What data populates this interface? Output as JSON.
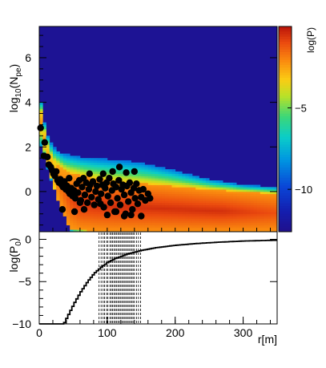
{
  "chart_data": [
    {
      "type": "heatmap",
      "ylabel": "log",
      "ylabel_sub": "10",
      "ylabel_tail": "(N",
      "ylabel_sub2": "pe",
      "ylabel_close": ")",
      "xlim": [
        0,
        350
      ],
      "ylim": [
        -1.8,
        7.4
      ],
      "yticks": [
        {
          "v": 0,
          "label": "0"
        },
        {
          "v": 2,
          "label": "2"
        },
        {
          "v": 4,
          "label": "4"
        },
        {
          "v": 6,
          "label": "6"
        }
      ],
      "colorbar": {
        "label": "log(P)",
        "range": [
          -12.6,
          0
        ],
        "ticks": [
          {
            "v": -5,
            "label": "−5"
          },
          {
            "v": -10,
            "label": "−10"
          }
        ]
      },
      "background_value": -12.3,
      "band": {
        "upper_edge": [
          [
            0,
            4.6
          ],
          [
            5,
            3.5
          ],
          [
            10,
            2.7
          ],
          [
            20,
            2.0
          ],
          [
            35,
            1.7
          ],
          [
            60,
            1.55
          ],
          [
            100,
            1.45
          ],
          [
            150,
            1.3
          ],
          [
            200,
            0.95
          ],
          [
            250,
            0.55
          ],
          [
            300,
            0.3
          ],
          [
            350,
            0.2
          ]
        ],
        "upper_core": [
          [
            0,
            4.0
          ],
          [
            10,
            2.2
          ],
          [
            20,
            1.4
          ],
          [
            40,
            0.9
          ],
          [
            80,
            0.6
          ],
          [
            120,
            0.45
          ],
          [
            180,
            0.3
          ],
          [
            250,
            0.1
          ],
          [
            350,
            -0.1
          ]
        ],
        "lower_core": [
          [
            0,
            3.0
          ],
          [
            15,
            0.9
          ],
          [
            30,
            -0.8
          ],
          [
            45,
            -1.7
          ],
          [
            100,
            -1.8
          ],
          [
            350,
            -1.8
          ]
        ],
        "lower_edge": [
          [
            0,
            2.2
          ],
          [
            20,
            0.3
          ],
          [
            30,
            -0.6
          ],
          [
            40,
            -1.3
          ],
          [
            48,
            -1.8
          ],
          [
            350,
            -1.8
          ]
        ],
        "peak_r": [
          60,
          270
        ]
      },
      "points": [
        [
          2,
          2.85
        ],
        [
          8,
          2.2
        ],
        [
          7,
          1.6
        ],
        [
          12,
          1.55
        ],
        [
          14,
          1.2
        ],
        [
          17,
          1.1
        ],
        [
          19,
          0.95
        ],
        [
          21,
          0.8
        ],
        [
          23,
          0.7
        ],
        [
          25,
          0.9
        ],
        [
          27,
          0.5
        ],
        [
          29,
          0.4
        ],
        [
          31,
          0.55
        ],
        [
          33,
          0.3
        ],
        [
          35,
          0.2
        ],
        [
          37,
          0.45
        ],
        [
          39,
          0.1
        ],
        [
          41,
          0.25
        ],
        [
          43,
          0.0
        ],
        [
          45,
          -0.1
        ],
        [
          47,
          0.15
        ],
        [
          49,
          -0.2
        ],
        [
          51,
          0.05
        ],
        [
          53,
          -0.3
        ],
        [
          55,
          0.35
        ],
        [
          57,
          -0.05
        ],
        [
          59,
          0.5
        ],
        [
          61,
          -0.4
        ],
        [
          63,
          0.2
        ],
        [
          65,
          0.6
        ],
        [
          67,
          -0.15
        ],
        [
          69,
          0.4
        ],
        [
          71,
          -0.5
        ],
        [
          73,
          0.1
        ],
        [
          75,
          0.3
        ],
        [
          77,
          -0.25
        ],
        [
          79,
          0.45
        ],
        [
          81,
          -0.6
        ],
        [
          83,
          0.0
        ],
        [
          85,
          0.25
        ],
        [
          87,
          -0.35
        ],
        [
          89,
          0.55
        ],
        [
          91,
          -0.1
        ],
        [
          93,
          0.3
        ],
        [
          95,
          -0.7
        ],
        [
          97,
          0.15
        ],
        [
          99,
          0.4
        ],
        [
          101,
          -0.2
        ],
        [
          103,
          0.6
        ],
        [
          105,
          -0.5
        ],
        [
          107,
          0.05
        ],
        [
          109,
          0.35
        ],
        [
          111,
          -0.9
        ],
        [
          113,
          0.2
        ],
        [
          115,
          -0.3
        ],
        [
          117,
          0.5
        ],
        [
          119,
          -0.6
        ],
        [
          121,
          0.1
        ],
        [
          123,
          0.3
        ],
        [
          125,
          -0.15
        ],
        [
          127,
          -1.0
        ],
        [
          129,
          0.25
        ],
        [
          131,
          -0.45
        ],
        [
          133,
          0.4
        ],
        [
          135,
          -0.05
        ],
        [
          137,
          -0.8
        ],
        [
          139,
          0.15
        ],
        [
          141,
          -0.3
        ],
        [
          143,
          0.35
        ],
        [
          145,
          -0.55
        ],
        [
          147,
          0.05
        ],
        [
          150,
          -0.25
        ],
        [
          153,
          0.1
        ],
        [
          156,
          -0.4
        ],
        [
          160,
          -0.1
        ],
        [
          163,
          -0.3
        ],
        [
          118,
          1.1
        ],
        [
          128,
          0.85
        ],
        [
          108,
          0.9
        ],
        [
          140,
          0.9
        ],
        [
          34,
          -0.8
        ],
        [
          44,
          0.6
        ],
        [
          60,
          -0.5
        ],
        [
          74,
          0.8
        ],
        [
          94,
          0.8
        ],
        [
          100,
          -1.05
        ],
        [
          125,
          -1.1
        ],
        [
          150,
          -1.1
        ],
        [
          135,
          -1.05
        ],
        [
          113,
          -0.9
        ],
        [
          90,
          -0.55
        ],
        [
          66,
          -0.8
        ],
        [
          52,
          -0.9
        ]
      ]
    },
    {
      "type": "line",
      "ylabel": "log(P",
      "ylabel_sub": "0",
      "ylabel_close": ")",
      "xlabel": "r[m]",
      "xlim": [
        0,
        350
      ],
      "ylim": [
        -10,
        0.9
      ],
      "yticks": [
        {
          "v": 0,
          "label": "0"
        },
        {
          "v": -5,
          "label": "−5"
        },
        {
          "v": -10,
          "label": "−10"
        }
      ],
      "xticks": [
        {
          "v": 0,
          "label": "0"
        },
        {
          "v": 100,
          "label": "100"
        },
        {
          "v": 200,
          "label": "200"
        },
        {
          "v": 300,
          "label": "300"
        }
      ],
      "series": [
        {
          "curve": [
            [
              0,
              -10
            ],
            [
              35,
              -10
            ],
            [
              40,
              -9.2
            ],
            [
              50,
              -7.6
            ],
            [
              60,
              -6.2
            ],
            [
              70,
              -5.0
            ],
            [
              80,
              -4.0
            ],
            [
              90,
              -3.3
            ],
            [
              100,
              -2.7
            ],
            [
              110,
              -2.3
            ],
            [
              120,
              -2.0
            ],
            [
              130,
              -1.7
            ],
            [
              140,
              -1.5
            ],
            [
              150,
              -1.3
            ],
            [
              170,
              -1.0
            ],
            [
              200,
              -0.7
            ],
            [
              230,
              -0.5
            ],
            [
              260,
              -0.35
            ],
            [
              300,
              -0.2
            ],
            [
              340,
              -0.12
            ],
            [
              350,
              -0.1
            ]
          ]
        }
      ],
      "vlines": [
        88,
        91,
        94,
        96,
        99,
        101,
        104,
        106,
        108,
        110,
        112,
        114,
        116,
        118,
        120,
        122,
        124,
        126,
        128,
        130,
        132,
        134,
        136,
        138,
        140,
        143,
        146,
        149
      ]
    }
  ]
}
